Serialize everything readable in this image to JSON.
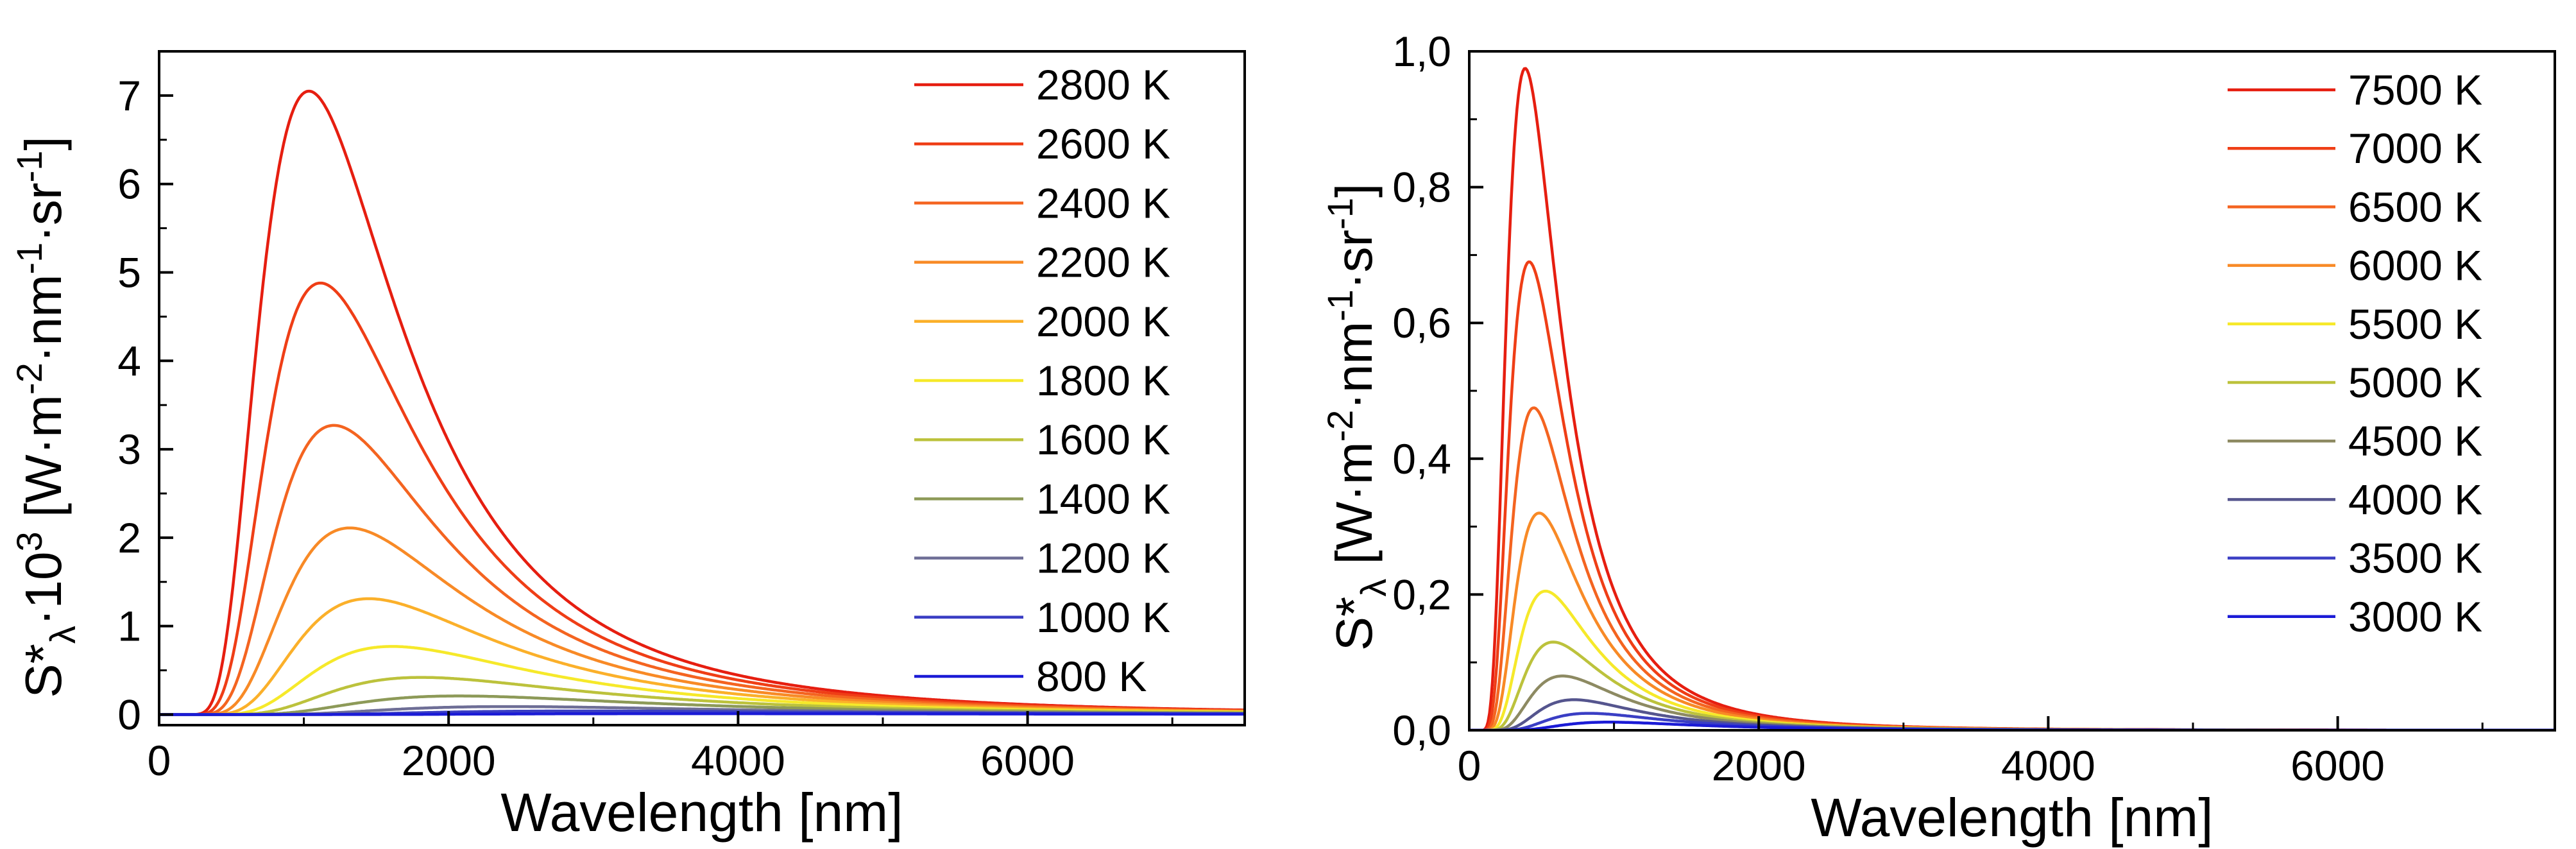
{
  "chart_data": [
    {
      "type": "line",
      "xlabel": "Wavelength [nm]",
      "ylabel_parts": [
        "S*",
        "λ",
        "·10",
        "3",
        " [W·m",
        "-2",
        "·nm",
        "-1",
        "·sr",
        "-1",
        "]"
      ],
      "xlim": [
        0,
        7500
      ],
      "ylim": [
        -0.12,
        7.5
      ],
      "xticks": [
        {
          "v": 0,
          "label": "0"
        },
        {
          "v": 2000,
          "label": "2000"
        },
        {
          "v": 4000,
          "label": "4000"
        },
        {
          "v": 6000,
          "label": "6000"
        }
      ],
      "yticks": [
        {
          "v": 0,
          "label": "0"
        },
        {
          "v": 1,
          "label": "1"
        },
        {
          "v": 2,
          "label": "2"
        },
        {
          "v": 3,
          "label": "3"
        },
        {
          "v": 4,
          "label": "4"
        },
        {
          "v": 5,
          "label": "5"
        },
        {
          "v": 6,
          "label": "6"
        },
        {
          "v": 7,
          "label": "7"
        }
      ],
      "grid": false,
      "legend_position": "top-right",
      "value_scale": 0.001,
      "series": [
        {
          "name": "2800 K",
          "temperature": 2800,
          "color": "#e61e10",
          "peak": 7.05
        },
        {
          "name": "2600 K",
          "temperature": 2600,
          "color": "#ef3e16",
          "peak": 4.88
        },
        {
          "name": "2400 K",
          "temperature": 2400,
          "color": "#f46420",
          "peak": 3.27
        },
        {
          "name": "2200 K",
          "temperature": 2200,
          "color": "#f88a26",
          "peak": 2.11
        },
        {
          "name": "2000 K",
          "temperature": 2000,
          "color": "#fbb02a",
          "peak": 1.31
        },
        {
          "name": "1800 K",
          "temperature": 1800,
          "color": "#f6e92a",
          "peak": 0.77
        },
        {
          "name": "1600 K",
          "temperature": 1600,
          "color": "#bcc23c",
          "peak": 0.42
        },
        {
          "name": "1400 K",
          "temperature": 1400,
          "color": "#8d9a58",
          "peak": 0.21
        },
        {
          "name": "1200 K",
          "temperature": 1200,
          "color": "#6e6e96",
          "peak": 0.09
        },
        {
          "name": "1000 K",
          "temperature": 1000,
          "color": "#3a3ec4",
          "peak": 0.04
        },
        {
          "name": "800 K",
          "temperature": 800,
          "color": "#1b1bd6",
          "peak": 0.01
        }
      ]
    },
    {
      "type": "line",
      "xlabel": "Wavelength [nm]",
      "ylabel_parts": [
        "S*",
        "λ",
        "",
        "",
        " [W·m",
        "-2",
        "·nm",
        "-1",
        "·sr",
        "-1",
        "]"
      ],
      "xlim": [
        0,
        7500
      ],
      "ylim": [
        0,
        1.0
      ],
      "xticks": [
        {
          "v": 0,
          "label": "0"
        },
        {
          "v": 2000,
          "label": "2000"
        },
        {
          "v": 4000,
          "label": "4000"
        },
        {
          "v": 6000,
          "label": "6000"
        }
      ],
      "yticks": [
        {
          "v": 0,
          "label": "0,0"
        },
        {
          "v": 0.2,
          "label": "0,2"
        },
        {
          "v": 0.4,
          "label": "0,4"
        },
        {
          "v": 0.6,
          "label": "0,6"
        },
        {
          "v": 0.8,
          "label": "0,8"
        },
        {
          "v": 1.0,
          "label": "1,0"
        }
      ],
      "grid": false,
      "legend_position": "top-right",
      "value_scale": 1,
      "series": [
        {
          "name": "7500 K",
          "temperature": 7500,
          "color": "#e61e10",
          "peak": 0.975
        },
        {
          "name": "7000 K",
          "temperature": 7000,
          "color": "#ef3e16",
          "peak": 0.69
        },
        {
          "name": "6500 K",
          "temperature": 6500,
          "color": "#f46420",
          "peak": 0.475
        },
        {
          "name": "6000 K",
          "temperature": 6000,
          "color": "#f88a26",
          "peak": 0.32
        },
        {
          "name": "5500 K",
          "temperature": 5500,
          "color": "#f6e92a",
          "peak": 0.205
        },
        {
          "name": "5000 K",
          "temperature": 5000,
          "color": "#bcc23c",
          "peak": 0.13
        },
        {
          "name": "4500 K",
          "temperature": 4500,
          "color": "#8d8a62",
          "peak": 0.08
        },
        {
          "name": "4000 K",
          "temperature": 4000,
          "color": "#55558e",
          "peak": 0.045
        },
        {
          "name": "3500 K",
          "temperature": 3500,
          "color": "#3a3ec4",
          "peak": 0.025
        },
        {
          "name": "3000 K",
          "temperature": 3000,
          "color": "#1b1bd6",
          "peak": 0.012
        }
      ]
    }
  ]
}
